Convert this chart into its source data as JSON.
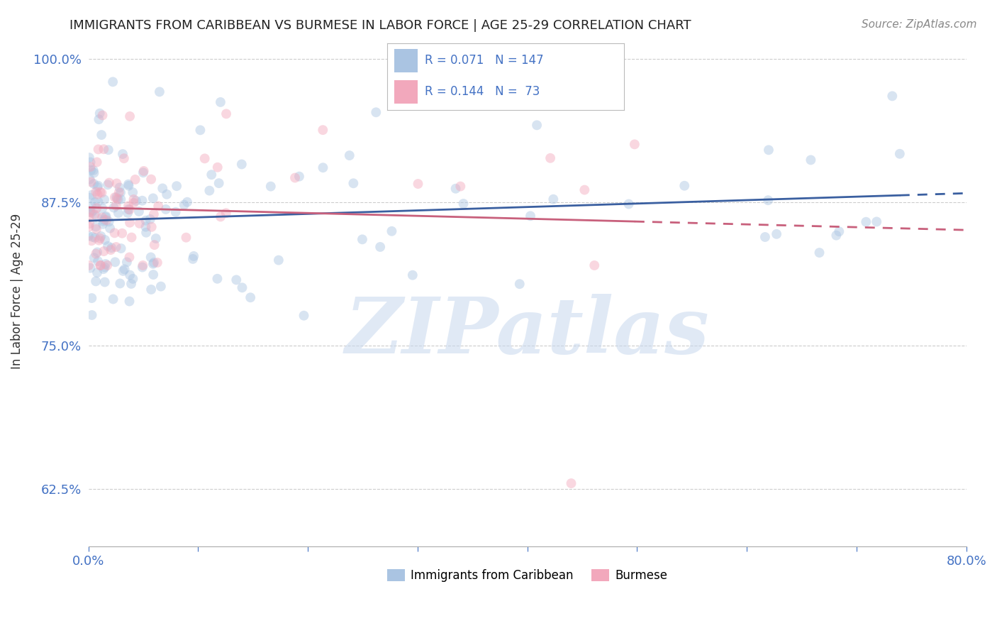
{
  "title": "IMMIGRANTS FROM CARIBBEAN VS BURMESE IN LABOR FORCE | AGE 25-29 CORRELATION CHART",
  "source": "Source: ZipAtlas.com",
  "ylabel": "In Labor Force | Age 25-29",
  "xlim": [
    0.0,
    0.8
  ],
  "ylim": [
    0.575,
    1.02
  ],
  "xticks": [
    0.0,
    0.1,
    0.2,
    0.3,
    0.4,
    0.5,
    0.6,
    0.7,
    0.8
  ],
  "xticklabels": [
    "0.0%",
    "",
    "",
    "",
    "",
    "",
    "",
    "",
    "80.0%"
  ],
  "yticks": [
    0.625,
    0.75,
    0.875,
    1.0
  ],
  "yticklabels": [
    "62.5%",
    "75.0%",
    "87.5%",
    "100.0%"
  ],
  "caribbean_R": 0.071,
  "caribbean_N": 147,
  "burmese_R": 0.144,
  "burmese_N": 73,
  "caribbean_color": "#aac4e2",
  "burmese_color": "#f2a8bc",
  "caribbean_line_color": "#3a5fa0",
  "burmese_line_color": "#c8607c",
  "legend_label_1": "Immigrants from Caribbean",
  "legend_label_2": "Burmese",
  "watermark": "ZIPatlas",
  "background_color": "#ffffff",
  "grid_color": "#cccccc",
  "title_color": "#222222",
  "axis_label_color": "#4472c4",
  "scatter_size": 100,
  "scatter_alpha": 0.45
}
